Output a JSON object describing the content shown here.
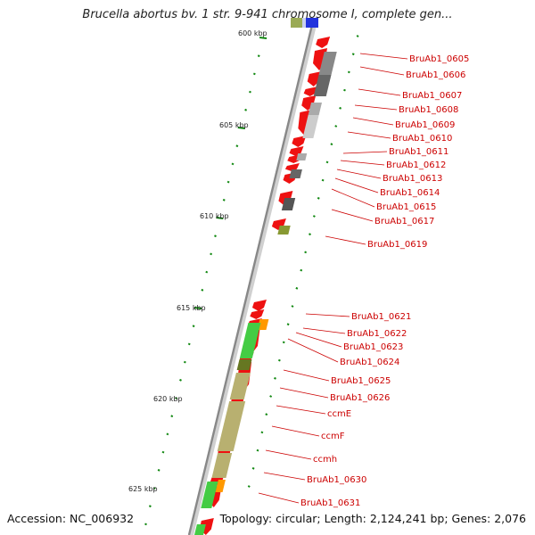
{
  "title": "Brucella abortus bv. 1 str. 9-941 chromosome I, complete gen...",
  "footer": {
    "accession": "Accession: NC_006932",
    "summary": "Topology: circular; Length: 2,124,241 bp; Genes: 2,076"
  },
  "kbp_labels": [
    "600 kbp",
    "605 kbp",
    "610 kbp",
    "615 kbp",
    "620 kbp",
    "625 kbp"
  ],
  "gene_labels": [
    "BruAb1_0605",
    "BruAb1_0606",
    "BruAb1_0607",
    "BruAb1_0608",
    "BruAb1_0609",
    "BruAb1_0610",
    "BruAb1_0611",
    "BruAb1_0612",
    "BruAb1_0613",
    "BruAb1_0614",
    "BruAb1_0615",
    "BruAb1_0617",
    "BruAb1_0619",
    "BruAb1_0621",
    "BruAb1_0622",
    "BruAb1_0623",
    "BruAb1_0624",
    "BruAb1_0625",
    "BruAb1_0626",
    "ccmE",
    "ccmF",
    "ccmh",
    "BruAb1_0630",
    "BruAb1_0631"
  ],
  "colors": {
    "cds": "#ee1111",
    "gray_feature": "#777777",
    "olive_feature": "#b8b070",
    "green_feature": "#44cc44",
    "orange_feature": "#ff9900",
    "label_text": "#cc0000",
    "tick": "#118811"
  }
}
